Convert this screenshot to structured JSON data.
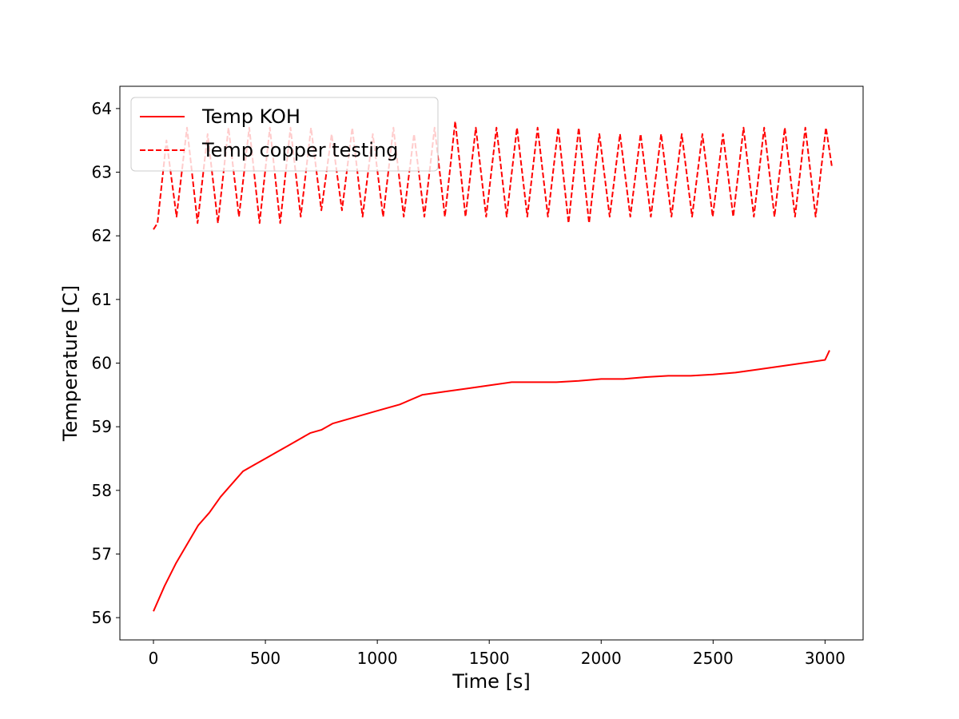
{
  "chart_data": {
    "type": "line",
    "title": "",
    "xlabel": "Time [s]",
    "ylabel": "Temperature [C]",
    "xlim": [
      -150,
      3170
    ],
    "ylim": [
      55.65,
      64.35
    ],
    "xticks": [
      0,
      500,
      1000,
      1500,
      2000,
      2500,
      3000
    ],
    "yticks": [
      56,
      57,
      58,
      59,
      60,
      61,
      62,
      63,
      64
    ],
    "grid": false,
    "legend_position": "top-left",
    "series": [
      {
        "name": "Temp KOH",
        "color": "#ff0000",
        "style": "solid",
        "x": [
          0,
          50,
          100,
          150,
          200,
          250,
          300,
          350,
          400,
          450,
          500,
          550,
          600,
          650,
          700,
          750,
          800,
          900,
          1000,
          1100,
          1200,
          1300,
          1400,
          1500,
          1600,
          1700,
          1800,
          1900,
          2000,
          2100,
          2200,
          2300,
          2400,
          2500,
          2600,
          2700,
          2800,
          2900,
          3000,
          3020
        ],
        "y": [
          56.1,
          56.5,
          56.85,
          57.15,
          57.45,
          57.65,
          57.9,
          58.1,
          58.3,
          58.4,
          58.5,
          58.6,
          58.7,
          58.8,
          58.9,
          58.95,
          59.05,
          59.15,
          59.25,
          59.35,
          59.5,
          59.55,
          59.6,
          59.65,
          59.7,
          59.7,
          59.7,
          59.72,
          59.75,
          59.75,
          59.78,
          59.8,
          59.8,
          59.82,
          59.85,
          59.9,
          59.95,
          60.0,
          60.05,
          60.2
        ]
      },
      {
        "name": "Temp copper testing",
        "color": "#ff0000",
        "style": "dashed",
        "x": [
          0,
          18,
          58,
          103,
          150,
          197,
          242,
          288,
          335,
          382,
          428,
          474,
          520,
          566,
          612,
          658,
          704,
          750,
          796,
          842,
          888,
          934,
          980,
          1026,
          1072,
          1118,
          1164,
          1210,
          1256,
          1302,
          1348,
          1394,
          1440,
          1486,
          1532,
          1578,
          1624,
          1670,
          1716,
          1762,
          1808,
          1854,
          1900,
          1946,
          1992,
          2038,
          2084,
          2130,
          2176,
          2222,
          2268,
          2314,
          2360,
          2406,
          2452,
          2498,
          2544,
          2590,
          2636,
          2682,
          2728,
          2774,
          2820,
          2866,
          2912,
          2958,
          3004,
          3030
        ],
        "y": [
          62.1,
          62.2,
          63.5,
          62.3,
          63.7,
          62.2,
          63.6,
          62.2,
          63.7,
          62.3,
          63.7,
          62.2,
          63.7,
          62.2,
          63.7,
          62.3,
          63.7,
          62.4,
          63.6,
          62.4,
          63.7,
          62.3,
          63.6,
          62.3,
          63.7,
          62.3,
          63.6,
          62.3,
          63.7,
          62.3,
          63.8,
          62.3,
          63.7,
          62.3,
          63.7,
          62.3,
          63.7,
          62.3,
          63.7,
          62.3,
          63.7,
          62.2,
          63.7,
          62.2,
          63.6,
          62.3,
          63.6,
          62.3,
          63.6,
          62.3,
          63.6,
          62.3,
          63.6,
          62.3,
          63.6,
          62.3,
          63.6,
          62.3,
          63.7,
          62.3,
          63.7,
          62.3,
          63.7,
          62.3,
          63.7,
          62.3,
          63.7,
          63.1
        ]
      }
    ]
  }
}
